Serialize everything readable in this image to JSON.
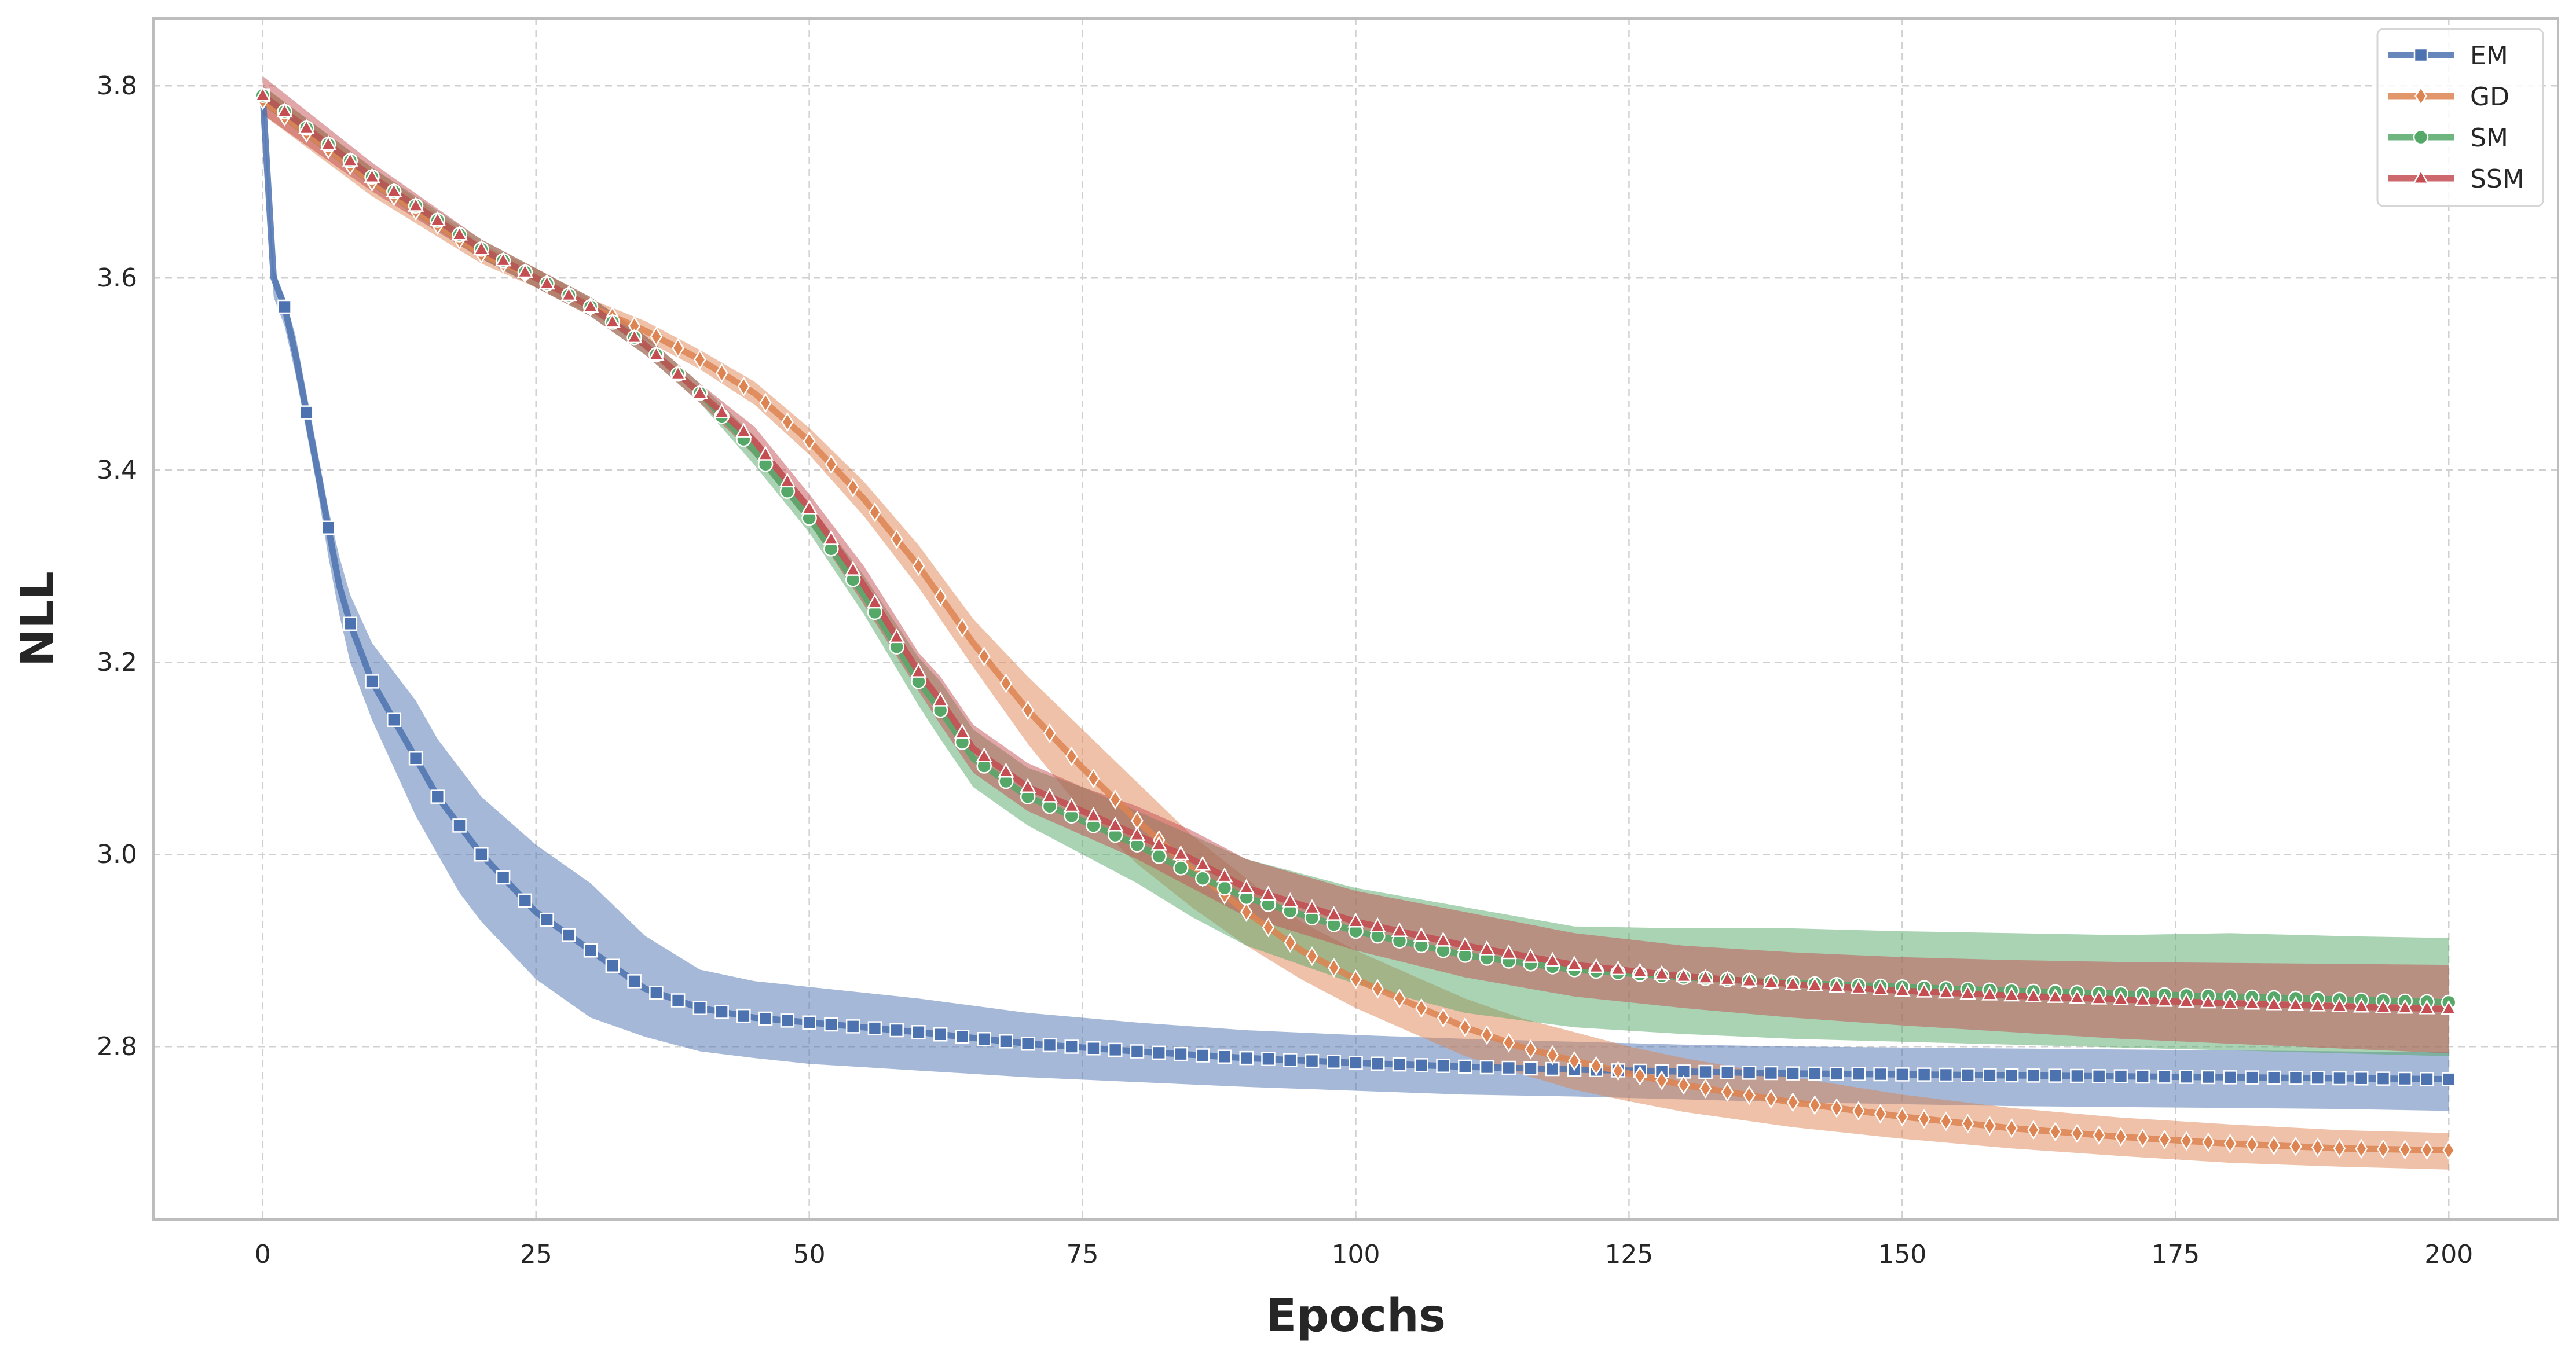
{
  "chart_data": {
    "type": "line",
    "title": "",
    "xlabel": "Epochs",
    "ylabel": "NLL",
    "xlim": [
      -10,
      210
    ],
    "ylim": [
      2.62,
      3.87
    ],
    "xticks": [
      0,
      25,
      50,
      75,
      100,
      125,
      150,
      175,
      200
    ],
    "xtick_labels": [
      "0",
      "25",
      "50",
      "75",
      "100",
      "125",
      "150",
      "175",
      "200"
    ],
    "yticks": [
      2.8,
      3.0,
      3.2,
      3.4,
      3.6,
      3.8
    ],
    "ytick_labels": [
      "2.8",
      "3.0",
      "3.2",
      "3.4",
      "3.6",
      "3.8"
    ],
    "grid": true,
    "legend_position": "top-right",
    "marker_every": 2,
    "series": [
      {
        "name": "EM",
        "color": "#4c72b0",
        "marker": "square",
        "x": [
          0,
          1,
          2,
          3,
          4,
          5,
          6,
          7,
          8,
          10,
          12,
          14,
          16,
          18,
          20,
          25,
          30,
          35,
          40,
          45,
          50,
          60,
          70,
          80,
          90,
          100,
          110,
          120,
          130,
          140,
          150,
          160,
          170,
          180,
          190,
          200
        ],
        "y": [
          3.79,
          3.6,
          3.57,
          3.52,
          3.46,
          3.4,
          3.34,
          3.28,
          3.24,
          3.18,
          3.14,
          3.1,
          3.06,
          3.03,
          3.0,
          2.94,
          2.9,
          2.86,
          2.84,
          2.83,
          2.825,
          2.815,
          2.803,
          2.795,
          2.788,
          2.783,
          2.779,
          2.776,
          2.774,
          2.772,
          2.771,
          2.77,
          2.769,
          2.768,
          2.767,
          2.766
        ],
        "lower": [
          3.78,
          3.58,
          3.55,
          3.5,
          3.44,
          3.38,
          3.31,
          3.25,
          3.2,
          3.14,
          3.09,
          3.04,
          3.0,
          2.96,
          2.93,
          2.87,
          2.83,
          2.81,
          2.795,
          2.788,
          2.782,
          2.775,
          2.768,
          2.763,
          2.758,
          2.754,
          2.75,
          2.748,
          2.745,
          2.742,
          2.74,
          2.738,
          2.737,
          2.736,
          2.735,
          2.733
        ],
        "upper": [
          3.8,
          3.61,
          3.58,
          3.54,
          3.48,
          3.42,
          3.36,
          3.31,
          3.27,
          3.22,
          3.19,
          3.16,
          3.12,
          3.09,
          3.06,
          3.01,
          2.97,
          2.915,
          2.88,
          2.868,
          2.862,
          2.85,
          2.835,
          2.825,
          2.817,
          2.812,
          2.808,
          2.805,
          2.802,
          2.8,
          2.799,
          2.798,
          2.797,
          2.796,
          2.795,
          2.794
        ]
      },
      {
        "name": "GD",
        "color": "#dd8452",
        "marker": "diamond",
        "x": [
          0,
          10,
          20,
          25,
          30,
          35,
          40,
          45,
          50,
          55,
          60,
          65,
          70,
          75,
          80,
          85,
          90,
          95,
          100,
          105,
          110,
          115,
          120,
          125,
          130,
          140,
          150,
          160,
          170,
          180,
          190,
          200
        ],
        "y": [
          3.785,
          3.7,
          3.625,
          3.6,
          3.57,
          3.545,
          3.515,
          3.48,
          3.43,
          3.37,
          3.3,
          3.22,
          3.15,
          3.09,
          3.035,
          2.985,
          2.94,
          2.9,
          2.87,
          2.845,
          2.82,
          2.8,
          2.785,
          2.772,
          2.76,
          2.742,
          2.727,
          2.715,
          2.706,
          2.699,
          2.694,
          2.692
        ],
        "lower": [
          3.77,
          3.685,
          3.615,
          3.59,
          3.562,
          3.535,
          3.505,
          3.468,
          3.416,
          3.352,
          3.278,
          3.195,
          3.115,
          3.045,
          2.99,
          2.945,
          2.905,
          2.87,
          2.84,
          2.815,
          2.79,
          2.772,
          2.755,
          2.743,
          2.732,
          2.716,
          2.704,
          2.694,
          2.686,
          2.679,
          2.675,
          2.672
        ],
        "upper": [
          3.8,
          3.715,
          3.635,
          3.61,
          3.578,
          3.555,
          3.525,
          3.492,
          3.444,
          3.388,
          3.322,
          3.245,
          3.185,
          3.13,
          3.075,
          3.02,
          2.975,
          2.93,
          2.9,
          2.875,
          2.85,
          2.83,
          2.815,
          2.8,
          2.788,
          2.768,
          2.75,
          2.736,
          2.726,
          2.719,
          2.713,
          2.71
        ]
      },
      {
        "name": "SM",
        "color": "#55a868",
        "marker": "circle",
        "x": [
          0,
          10,
          20,
          25,
          30,
          35,
          40,
          45,
          50,
          55,
          60,
          62,
          65,
          70,
          75,
          80,
          85,
          90,
          100,
          110,
          120,
          130,
          140,
          150,
          160,
          170,
          180,
          190,
          200
        ],
        "y": [
          3.79,
          3.705,
          3.63,
          3.6,
          3.57,
          3.53,
          3.48,
          3.42,
          3.35,
          3.27,
          3.18,
          3.15,
          3.1,
          3.06,
          3.035,
          3.01,
          2.98,
          2.955,
          2.92,
          2.895,
          2.88,
          2.872,
          2.866,
          2.862,
          2.858,
          2.855,
          2.852,
          2.849,
          2.846
        ],
        "lower": [
          3.78,
          3.695,
          3.62,
          3.59,
          3.56,
          3.52,
          3.47,
          3.405,
          3.335,
          3.25,
          3.155,
          3.12,
          3.07,
          3.03,
          3.0,
          2.97,
          2.935,
          2.905,
          2.865,
          2.835,
          2.82,
          2.813,
          2.808,
          2.805,
          2.802,
          2.799,
          2.796,
          2.793,
          2.79
        ],
        "upper": [
          3.8,
          3.715,
          3.64,
          3.61,
          3.58,
          3.54,
          3.49,
          3.435,
          3.365,
          3.29,
          3.205,
          3.18,
          3.13,
          3.09,
          3.07,
          3.045,
          3.02,
          2.995,
          2.965,
          2.945,
          2.925,
          2.923,
          2.923,
          2.92,
          2.918,
          2.916,
          2.918,
          2.915,
          2.913
        ]
      },
      {
        "name": "SSM",
        "color": "#c44e52",
        "marker": "triangle",
        "x": [
          0,
          10,
          20,
          25,
          30,
          35,
          40,
          45,
          50,
          55,
          60,
          62,
          65,
          70,
          75,
          80,
          85,
          90,
          100,
          110,
          120,
          130,
          140,
          150,
          160,
          170,
          180,
          190,
          200
        ],
        "y": [
          3.79,
          3.705,
          3.63,
          3.6,
          3.57,
          3.53,
          3.48,
          3.43,
          3.36,
          3.28,
          3.19,
          3.16,
          3.11,
          3.07,
          3.045,
          3.02,
          2.995,
          2.965,
          2.93,
          2.905,
          2.885,
          2.873,
          2.865,
          2.858,
          2.853,
          2.849,
          2.845,
          2.842,
          2.839
        ],
        "lower": [
          3.77,
          3.69,
          3.62,
          3.59,
          3.56,
          3.52,
          3.47,
          3.415,
          3.345,
          3.26,
          3.17,
          3.135,
          3.085,
          3.045,
          3.02,
          2.995,
          2.965,
          2.935,
          2.9,
          2.872,
          2.852,
          2.84,
          2.83,
          2.822,
          2.815,
          2.808,
          2.803,
          2.798,
          2.793
        ],
        "upper": [
          3.81,
          3.72,
          3.64,
          3.61,
          3.58,
          3.54,
          3.49,
          3.445,
          3.375,
          3.3,
          3.21,
          3.185,
          3.135,
          3.095,
          3.07,
          3.05,
          3.025,
          2.995,
          2.962,
          2.94,
          2.918,
          2.905,
          2.898,
          2.893,
          2.89,
          2.888,
          2.887,
          2.886,
          2.885
        ]
      }
    ]
  }
}
